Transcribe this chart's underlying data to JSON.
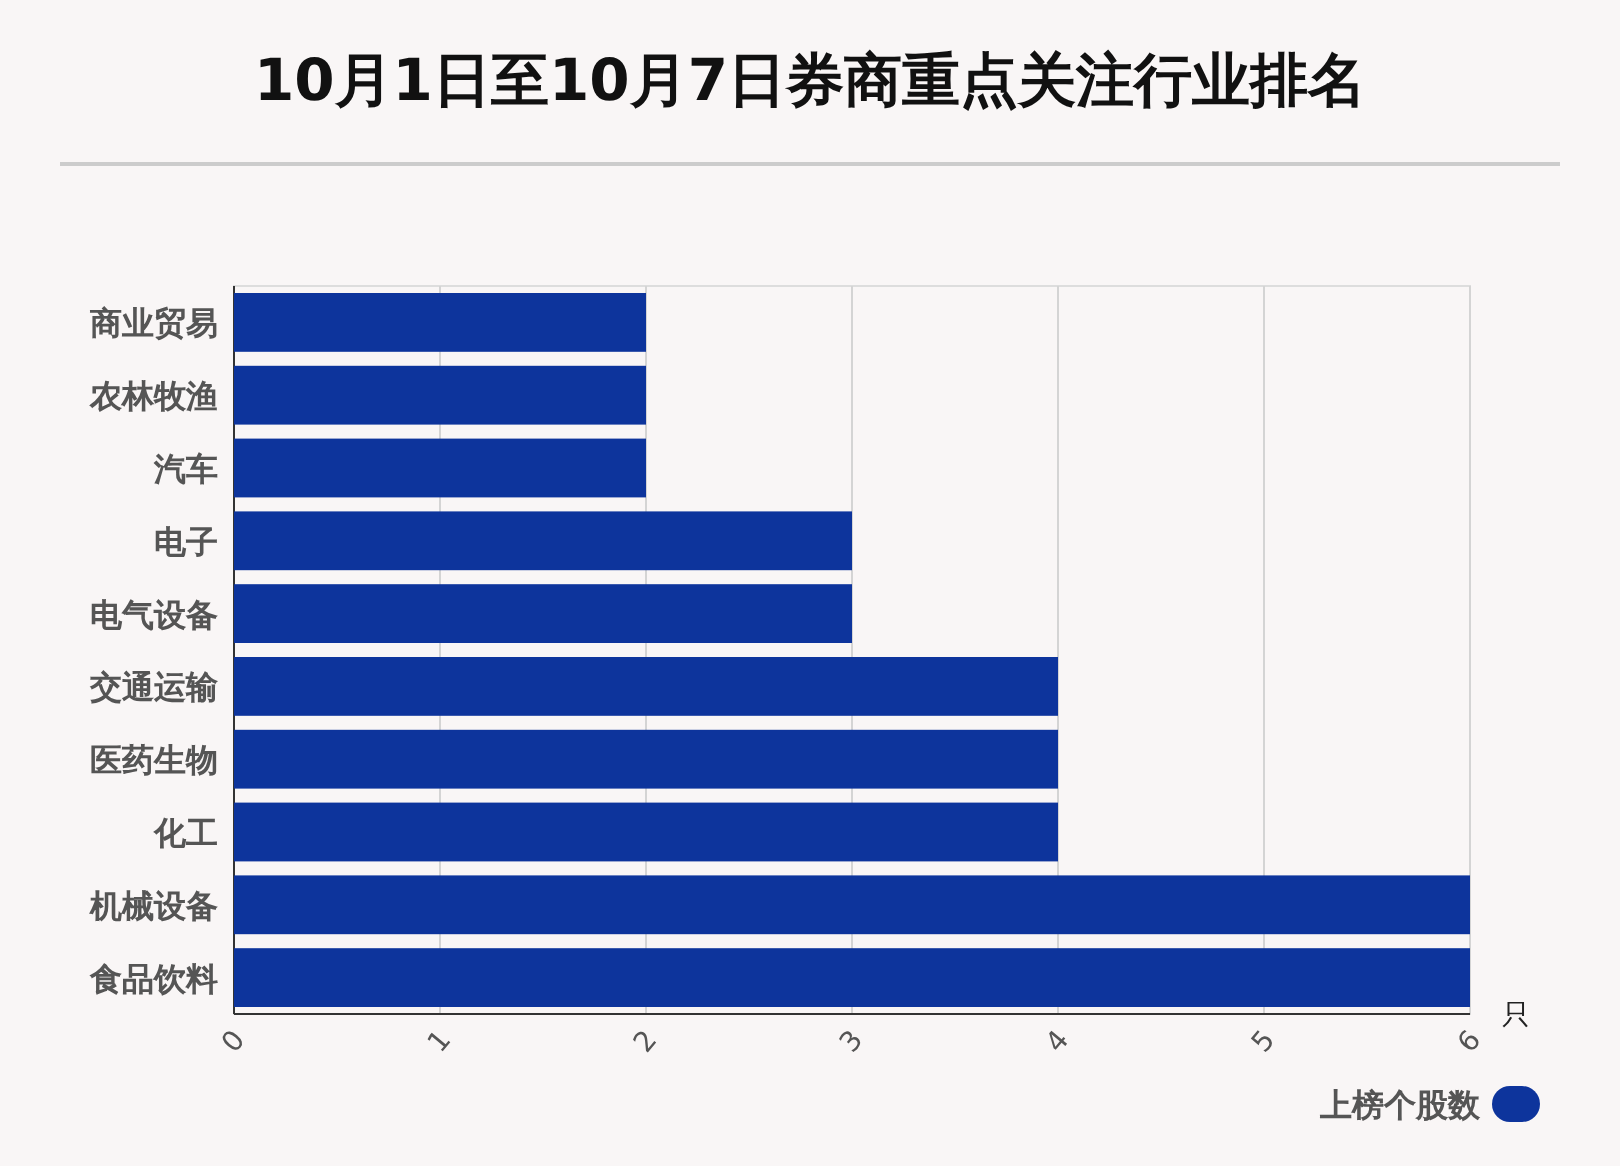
{
  "chart_data": {
    "type": "bar",
    "orientation": "horizontal",
    "title": "10月1日至10月7日券商重点关注行业排名",
    "xlabel": "只",
    "categories": [
      "商业贸易",
      "农林牧渔",
      "汽车",
      "电子",
      "电气设备",
      "交通运输",
      "医药生物",
      "化工",
      "机械设备",
      "食品饮料"
    ],
    "series": [
      {
        "name": "上榜个股数",
        "color": "#0d349c",
        "values": [
          2,
          2,
          2,
          3,
          3,
          4,
          4,
          4,
          6,
          6
        ]
      }
    ],
    "xlim": [
      0,
      6
    ],
    "xticks": [
      0,
      1,
      2,
      3,
      4,
      5,
      6
    ],
    "grid": "x",
    "legend": "bottom right"
  }
}
